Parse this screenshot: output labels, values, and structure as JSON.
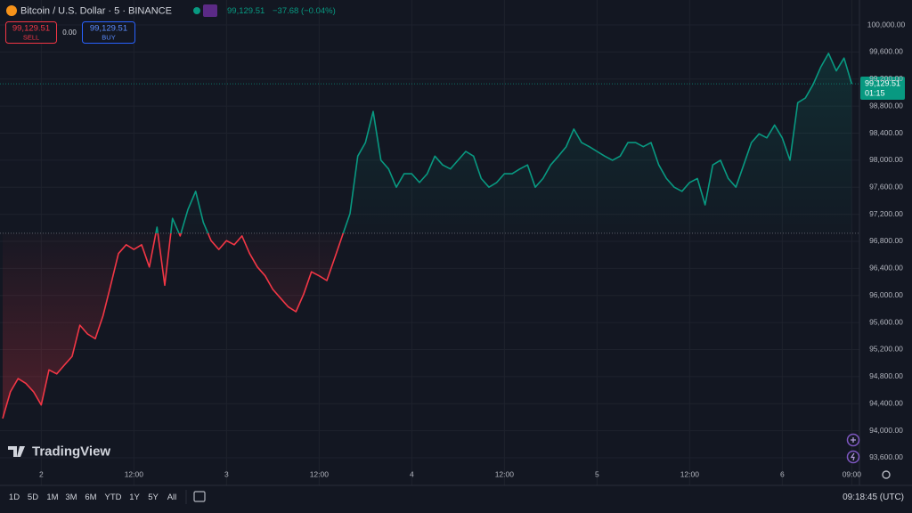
{
  "header": {
    "symbol": "Bitcoin / U.S. Dollar · 5 · BINANCE",
    "price": "99,129.51",
    "change": "−37.68 (−0.04%)"
  },
  "trade": {
    "sell_price": "99,129.51",
    "sell_label": "SELL",
    "spread": "0.00",
    "buy_price": "99,129.51",
    "buy_label": "BUY"
  },
  "price_tag": {
    "price": "99,129.51",
    "countdown": "01:15"
  },
  "watermark": "TradingView",
  "toolbar": {
    "ranges": [
      "1D",
      "5D",
      "1M",
      "3M",
      "6M",
      "YTD",
      "1Y",
      "5Y",
      "All"
    ],
    "clock": "09:18:45 (UTC)"
  },
  "chart_data": {
    "type": "baseline",
    "values": [
      94180,
      94575,
      94770,
      94700,
      94575,
      94380,
      94900,
      94840,
      94970,
      95100,
      95560,
      95430,
      95360,
      95700,
      96150,
      96620,
      96750,
      96680,
      96750,
      96420,
      97010,
      96150,
      97140,
      96880,
      97270,
      97540,
      97080,
      96810,
      96680,
      96810,
      96750,
      96880,
      96620,
      96420,
      96290,
      96090,
      95960,
      95830,
      95760,
      96020,
      96350,
      96290,
      96220,
      96550,
      96880,
      97210,
      98060,
      98260,
      98720,
      98000,
      97870,
      97600,
      97800,
      97800,
      97670,
      97800,
      98060,
      97930,
      97870,
      98000,
      98130,
      98060,
      97730,
      97600,
      97670,
      97800,
      97800,
      97870,
      97930,
      97600,
      97730,
      97930,
      98060,
      98200,
      98460,
      98260,
      98200,
      98130,
      98060,
      98000,
      98060,
      98260,
      98260,
      98200,
      98260,
      97930,
      97730,
      97600,
      97540,
      97670,
      97730,
      97340,
      97930,
      98000,
      97730,
      97600,
      97930,
      98260,
      98390,
      98330,
      98520,
      98330,
      98000,
      98850,
      98920,
      99120,
      99380,
      99580,
      99320,
      99510,
      99129.51
    ],
    "baseline": 96920,
    "colors": {
      "above": "#089981",
      "below": "#f23645"
    },
    "xlim": [
      0,
      111
    ],
    "xticks": [
      {
        "value": 5,
        "label": "2"
      },
      {
        "value": 17,
        "label": "12:00"
      },
      {
        "value": 29,
        "label": "3"
      },
      {
        "value": 41,
        "label": "12:00"
      },
      {
        "value": 53,
        "label": "4"
      },
      {
        "value": 65,
        "label": "12:00"
      },
      {
        "value": 77,
        "label": "5"
      },
      {
        "value": 89,
        "label": "12:00"
      },
      {
        "value": 101,
        "label": "6"
      },
      {
        "value": 110,
        "label": "09:00"
      }
    ],
    "ylim": [
      93257,
      100369
    ],
    "yticks": [
      {
        "value": 93600,
        "label": "93,600.00"
      },
      {
        "value": 94000,
        "label": "94,000.00"
      },
      {
        "value": 94400,
        "label": "94,400.00"
      },
      {
        "value": 94800,
        "label": "94,800.00"
      },
      {
        "value": 95200,
        "label": "95,200.00"
      },
      {
        "value": 95600,
        "label": "95,600.00"
      },
      {
        "value": 96000,
        "label": "96,000.00"
      },
      {
        "value": 96400,
        "label": "96,400.00"
      },
      {
        "value": 96800,
        "label": "96,800.00"
      },
      {
        "value": 97200,
        "label": "97,200.00"
      },
      {
        "value": 97600,
        "label": "97,600.00"
      },
      {
        "value": 98000,
        "label": "98,000.00"
      },
      {
        "value": 98400,
        "label": "98,400.00"
      },
      {
        "value": 98800,
        "label": "98,800.00"
      },
      {
        "value": 99200,
        "label": "99,200.00"
      },
      {
        "value": 99600,
        "label": "99,600.00"
      },
      {
        "value": 100000,
        "label": "100,000.00"
      }
    ],
    "grid": true
  }
}
